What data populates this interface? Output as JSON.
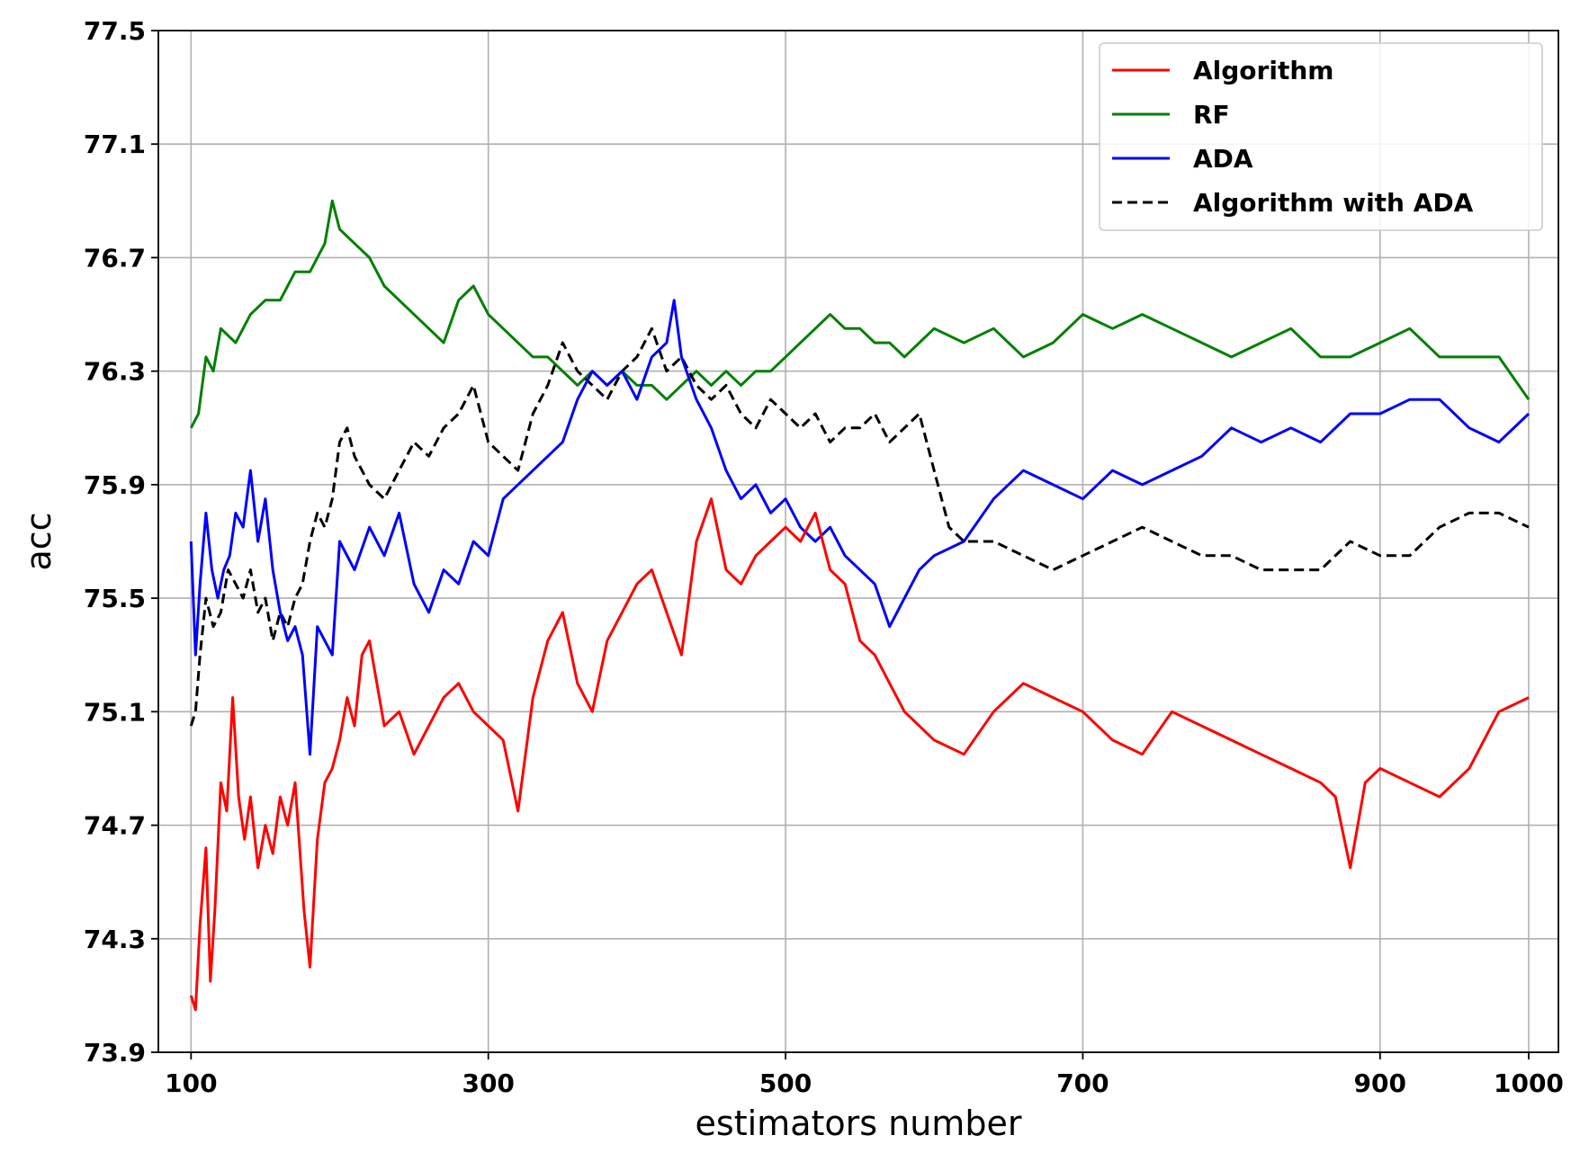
{
  "chart_data": {
    "type": "line",
    "title": "",
    "xlabel": "estimators number",
    "ylabel": "acc",
    "xlim": [
      78,
      1020
    ],
    "ylim": [
      73.9,
      77.5
    ],
    "xticks": [
      100,
      300,
      500,
      700,
      900,
      1000
    ],
    "yticks": [
      73.9,
      74.3,
      74.7,
      75.1,
      75.5,
      75.9,
      76.3,
      76.7,
      77.1,
      77.5
    ],
    "grid": true,
    "legend_position": "top-right",
    "series": [
      {
        "name": "Algorithm",
        "color": "#ff0000",
        "style": "solid",
        "x": [
          100,
          103,
          106,
          110,
          113,
          116,
          120,
          124,
          128,
          132,
          136,
          140,
          145,
          150,
          155,
          160,
          165,
          170,
          176,
          180,
          185,
          190,
          195,
          200,
          205,
          210,
          215,
          220,
          230,
          240,
          250,
          260,
          270,
          280,
          290,
          300,
          310,
          320,
          330,
          340,
          350,
          360,
          370,
          380,
          390,
          400,
          410,
          420,
          430,
          440,
          450,
          460,
          470,
          480,
          490,
          500,
          510,
          520,
          530,
          540,
          550,
          560,
          570,
          580,
          590,
          600,
          620,
          640,
          660,
          680,
          700,
          720,
          740,
          760,
          780,
          800,
          820,
          840,
          860,
          870,
          880,
          890,
          900,
          920,
          940,
          960,
          980,
          1000
        ],
        "y": [
          74.1,
          74.05,
          74.35,
          74.62,
          74.15,
          74.4,
          74.85,
          74.75,
          75.15,
          74.8,
          74.65,
          74.8,
          74.55,
          74.7,
          74.6,
          74.8,
          74.7,
          74.85,
          74.4,
          74.2,
          74.65,
          74.85,
          74.9,
          75.0,
          75.15,
          75.05,
          75.3,
          75.35,
          75.05,
          75.1,
          74.95,
          75.05,
          75.15,
          75.2,
          75.1,
          75.05,
          75.0,
          74.75,
          75.15,
          75.35,
          75.45,
          75.2,
          75.1,
          75.35,
          75.45,
          75.55,
          75.6,
          75.45,
          75.3,
          75.7,
          75.85,
          75.6,
          75.55,
          75.65,
          75.7,
          75.75,
          75.7,
          75.8,
          75.6,
          75.55,
          75.35,
          75.3,
          75.2,
          75.1,
          75.05,
          75.0,
          74.95,
          75.1,
          75.2,
          75.15,
          75.1,
          75.0,
          74.95,
          75.1,
          75.05,
          75.0,
          74.95,
          74.9,
          74.85,
          74.8,
          74.55,
          74.85,
          74.9,
          74.85,
          74.8,
          74.9,
          75.1,
          75.15
        ]
      },
      {
        "name": "RF",
        "color": "#008000",
        "style": "solid",
        "x": [
          100,
          105,
          110,
          115,
          120,
          130,
          140,
          150,
          160,
          170,
          180,
          190,
          195,
          200,
          210,
          220,
          230,
          240,
          250,
          260,
          270,
          280,
          290,
          300,
          310,
          320,
          330,
          340,
          350,
          360,
          370,
          380,
          390,
          400,
          410,
          420,
          430,
          440,
          450,
          460,
          470,
          480,
          490,
          500,
          510,
          520,
          530,
          540,
          550,
          560,
          570,
          580,
          600,
          620,
          640,
          660,
          680,
          700,
          720,
          740,
          760,
          780,
          800,
          820,
          840,
          860,
          880,
          900,
          920,
          940,
          960,
          980,
          1000
        ],
        "y": [
          76.1,
          76.15,
          76.35,
          76.3,
          76.45,
          76.4,
          76.5,
          76.55,
          76.55,
          76.65,
          76.65,
          76.75,
          76.9,
          76.8,
          76.75,
          76.7,
          76.6,
          76.55,
          76.5,
          76.45,
          76.4,
          76.55,
          76.6,
          76.5,
          76.45,
          76.4,
          76.35,
          76.35,
          76.3,
          76.25,
          76.3,
          76.25,
          76.3,
          76.25,
          76.25,
          76.2,
          76.25,
          76.3,
          76.25,
          76.3,
          76.25,
          76.3,
          76.3,
          76.35,
          76.4,
          76.45,
          76.5,
          76.45,
          76.45,
          76.4,
          76.4,
          76.35,
          76.45,
          76.4,
          76.45,
          76.35,
          76.4,
          76.5,
          76.45,
          76.5,
          76.45,
          76.4,
          76.35,
          76.4,
          76.45,
          76.35,
          76.35,
          76.4,
          76.45,
          76.35,
          76.35,
          76.35,
          76.2
        ]
      },
      {
        "name": "ADA",
        "color": "#0000ff",
        "style": "solid",
        "x": [
          100,
          103,
          106,
          110,
          114,
          118,
          122,
          126,
          130,
          135,
          140,
          145,
          150,
          155,
          160,
          165,
          170,
          175,
          180,
          185,
          190,
          195,
          200,
          210,
          220,
          230,
          240,
          250,
          260,
          270,
          280,
          290,
          300,
          310,
          320,
          330,
          340,
          350,
          360,
          370,
          380,
          390,
          400,
          410,
          420,
          425,
          430,
          440,
          450,
          460,
          470,
          480,
          490,
          500,
          510,
          520,
          530,
          540,
          550,
          560,
          570,
          580,
          590,
          600,
          620,
          640,
          660,
          680,
          700,
          720,
          740,
          760,
          780,
          800,
          820,
          840,
          860,
          880,
          900,
          920,
          940,
          960,
          980,
          1000
        ],
        "y": [
          75.7,
          75.3,
          75.55,
          75.8,
          75.6,
          75.5,
          75.6,
          75.65,
          75.8,
          75.75,
          75.95,
          75.7,
          75.85,
          75.6,
          75.45,
          75.35,
          75.4,
          75.3,
          74.95,
          75.4,
          75.35,
          75.3,
          75.7,
          75.6,
          75.75,
          75.65,
          75.8,
          75.55,
          75.45,
          75.6,
          75.55,
          75.7,
          75.65,
          75.85,
          75.9,
          75.95,
          76.0,
          76.05,
          76.2,
          76.3,
          76.25,
          76.3,
          76.2,
          76.35,
          76.4,
          76.55,
          76.35,
          76.2,
          76.1,
          75.95,
          75.85,
          75.9,
          75.8,
          75.85,
          75.75,
          75.7,
          75.75,
          75.65,
          75.6,
          75.55,
          75.4,
          75.5,
          75.6,
          75.65,
          75.7,
          75.85,
          75.95,
          75.9,
          75.85,
          75.95,
          75.9,
          75.95,
          76.0,
          76.1,
          76.05,
          76.1,
          76.05,
          76.15,
          76.15,
          76.2,
          76.2,
          76.1,
          76.05,
          76.15
        ]
      },
      {
        "name": "Algorithm with ADA",
        "color": "#000000",
        "style": "dashed",
        "x": [
          100,
          103,
          106,
          110,
          115,
          120,
          125,
          130,
          135,
          140,
          145,
          150,
          155,
          160,
          165,
          170,
          175,
          180,
          185,
          190,
          195,
          200,
          205,
          210,
          220,
          230,
          240,
          250,
          260,
          270,
          280,
          290,
          300,
          310,
          320,
          330,
          340,
          350,
          360,
          370,
          380,
          390,
          400,
          410,
          420,
          430,
          440,
          450,
          460,
          470,
          480,
          490,
          500,
          510,
          520,
          530,
          540,
          550,
          560,
          570,
          580,
          590,
          600,
          610,
          620,
          640,
          660,
          680,
          700,
          720,
          740,
          760,
          780,
          800,
          820,
          840,
          860,
          880,
          900,
          920,
          940,
          960,
          980,
          1000
        ],
        "y": [
          75.05,
          75.1,
          75.3,
          75.5,
          75.4,
          75.45,
          75.6,
          75.55,
          75.5,
          75.6,
          75.45,
          75.5,
          75.35,
          75.45,
          75.4,
          75.5,
          75.55,
          75.7,
          75.8,
          75.75,
          75.85,
          76.05,
          76.1,
          76.0,
          75.9,
          75.85,
          75.95,
          76.05,
          76.0,
          76.1,
          76.15,
          76.25,
          76.05,
          76.0,
          75.95,
          76.15,
          76.25,
          76.4,
          76.3,
          76.25,
          76.2,
          76.3,
          76.35,
          76.45,
          76.3,
          76.35,
          76.25,
          76.2,
          76.25,
          76.15,
          76.1,
          76.2,
          76.15,
          76.1,
          76.15,
          76.05,
          76.1,
          76.1,
          76.15,
          76.05,
          76.1,
          76.15,
          75.95,
          75.75,
          75.7,
          75.7,
          75.65,
          75.6,
          75.65,
          75.7,
          75.75,
          75.7,
          75.65,
          75.65,
          75.6,
          75.6,
          75.6,
          75.7,
          75.65,
          75.65,
          75.75,
          75.8,
          75.8,
          75.75
        ]
      }
    ]
  }
}
